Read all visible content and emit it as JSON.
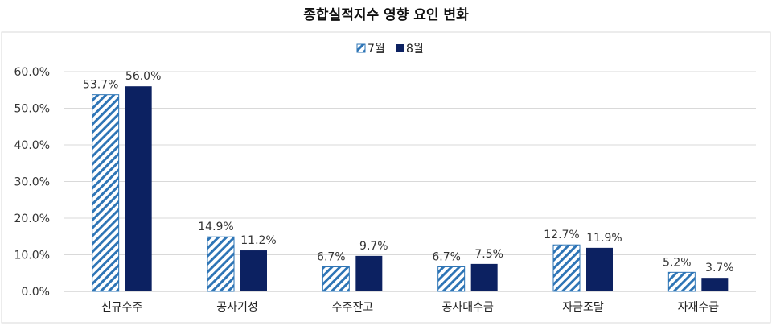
{
  "chart_data": {
    "type": "bar",
    "title": "종합실적지수 영향 요인 변화",
    "categories": [
      "신규수주",
      "공사기성",
      "수주잔고",
      "공사대수금",
      "자금조달",
      "자재수급"
    ],
    "series": [
      {
        "name": "7월",
        "values": [
          53.7,
          14.9,
          6.7,
          6.7,
          12.7,
          5.2
        ],
        "labels": [
          "53.7%",
          "14.9%",
          "6.7%",
          "6.7%",
          "12.7%",
          "5.2%"
        ],
        "color": "#2e75b6",
        "pattern": "diagonal-hatch"
      },
      {
        "name": "8월",
        "values": [
          56.0,
          11.2,
          9.7,
          7.5,
          11.9,
          3.7
        ],
        "labels": [
          "56.0%",
          "11.2%",
          "9.7%",
          "7.5%",
          "11.9%",
          "3.7%"
        ],
        "color": "#0c2161",
        "pattern": "solid"
      }
    ],
    "ylim": [
      0,
      60
    ],
    "yticks": [
      "0.0%",
      "10.0%",
      "20.0%",
      "30.0%",
      "40.0%",
      "50.0%",
      "60.0%"
    ],
    "ytick_values": [
      0,
      10,
      20,
      30,
      40,
      50,
      60
    ],
    "grid": true,
    "legend": "top-center",
    "xlabel": "",
    "ylabel": ""
  }
}
